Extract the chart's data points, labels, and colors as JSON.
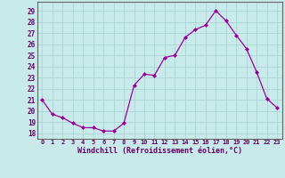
{
  "x": [
    0,
    1,
    2,
    3,
    4,
    5,
    6,
    7,
    8,
    9,
    10,
    11,
    12,
    13,
    14,
    15,
    16,
    17,
    18,
    19,
    20,
    21,
    22,
    23
  ],
  "y": [
    21.0,
    19.7,
    19.4,
    18.9,
    18.5,
    18.5,
    18.2,
    18.2,
    18.9,
    22.3,
    23.3,
    23.2,
    24.8,
    25.0,
    26.6,
    27.3,
    27.7,
    29.0,
    28.1,
    26.8,
    25.6,
    23.5,
    21.1,
    20.3
  ],
  "line_color": "#990099",
  "marker": "D",
  "marker_size": 2,
  "bg_color": "#c8eaea",
  "grid_color": "#b0d8d8",
  "xlabel": "Windchill (Refroidissement éolien,°C)",
  "xlabel_ticks": [
    "0",
    "1",
    "2",
    "3",
    "4",
    "5",
    "6",
    "7",
    "8",
    "9",
    "10",
    "11",
    "12",
    "13",
    "14",
    "15",
    "16",
    "17",
    "18",
    "19",
    "20",
    "21",
    "22",
    "23"
  ],
  "yticks": [
    18,
    19,
    20,
    21,
    22,
    23,
    24,
    25,
    26,
    27,
    28,
    29
  ],
  "ylim": [
    17.5,
    29.8
  ],
  "xlim": [
    -0.5,
    23.5
  ]
}
